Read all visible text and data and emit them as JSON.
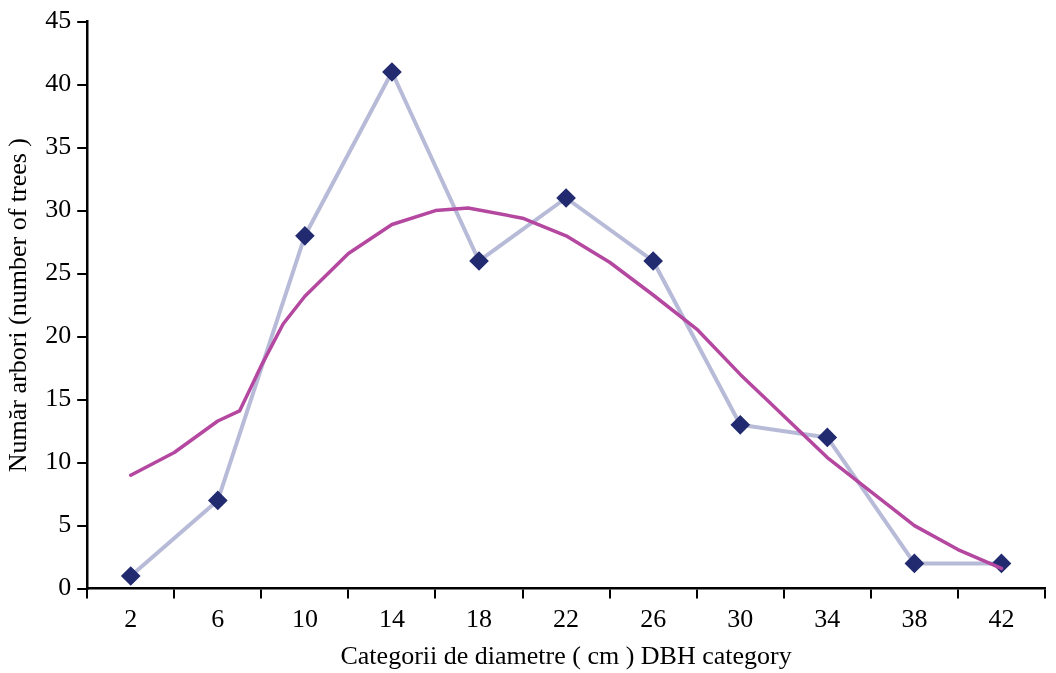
{
  "chart_data": {
    "type": "line",
    "xlabel": "Categorii de diametre ( cm ) DBH category",
    "ylabel": "Număr arbori (number of trees )",
    "x": [
      2,
      6,
      10,
      14,
      18,
      22,
      26,
      30,
      34,
      38,
      42
    ],
    "series": [
      {
        "color": "#b8bbd8",
        "marker": "diamond",
        "colors": [
          "#222a70",
          "#222a70",
          "#222a70",
          "#222a70",
          "#222a70",
          "#222a70",
          "#222a70",
          "#222a70",
          "#222a70",
          "#222a70",
          "#222a70"
        ],
        "values": [
          1,
          7,
          28,
          41,
          26,
          31,
          26,
          13,
          12,
          2,
          2
        ]
      },
      {
        "color": "#b4479f",
        "marker": "none",
        "x": [
          2,
          4,
          6,
          7,
          8,
          9,
          10,
          12,
          14,
          16,
          17.5,
          20,
          22,
          24,
          26,
          28,
          30,
          32,
          34,
          36,
          38,
          40,
          42
        ],
        "values": [
          9,
          10.8,
          13.3,
          14.1,
          17.7,
          21,
          23.2,
          26.6,
          28.9,
          30,
          30.2,
          29.4,
          28,
          25.9,
          23.3,
          20.6,
          17,
          13.7,
          10.4,
          7.7,
          5,
          3.1,
          1.6
        ]
      }
    ],
    "xlim": [
      0,
      44
    ],
    "xticks": [
      {
        "value": 0,
        "label": null
      },
      {
        "value": 2,
        "label": "2"
      },
      {
        "value": 4,
        "label": null
      },
      {
        "value": 6,
        "label": "6"
      },
      {
        "value": 8,
        "label": null
      },
      {
        "value": 10,
        "label": "10"
      },
      {
        "value": 12,
        "label": null
      },
      {
        "value": 14,
        "label": "14"
      },
      {
        "value": 16,
        "label": null
      },
      {
        "value": 18,
        "label": "18"
      },
      {
        "value": 20,
        "label": null
      },
      {
        "value": 22,
        "label": "22"
      },
      {
        "value": 24,
        "label": null
      },
      {
        "value": 26,
        "label": "26"
      },
      {
        "value": 28,
        "label": null
      },
      {
        "value": 30,
        "label": "30"
      },
      {
        "value": 32,
        "label": null
      },
      {
        "value": 34,
        "label": "34"
      },
      {
        "value": 36,
        "label": null
      },
      {
        "value": 38,
        "label": "38"
      },
      {
        "value": 40,
        "label": null
      },
      {
        "value": 42,
        "label": "42"
      },
      {
        "value": 44,
        "label": null
      }
    ],
    "ylim": [
      0,
      45
    ],
    "yticks": [
      0,
      5,
      10,
      15,
      20,
      25,
      30,
      35,
      40,
      45
    ],
    "grid": false,
    "legend": false,
    "line_style": "solid"
  }
}
